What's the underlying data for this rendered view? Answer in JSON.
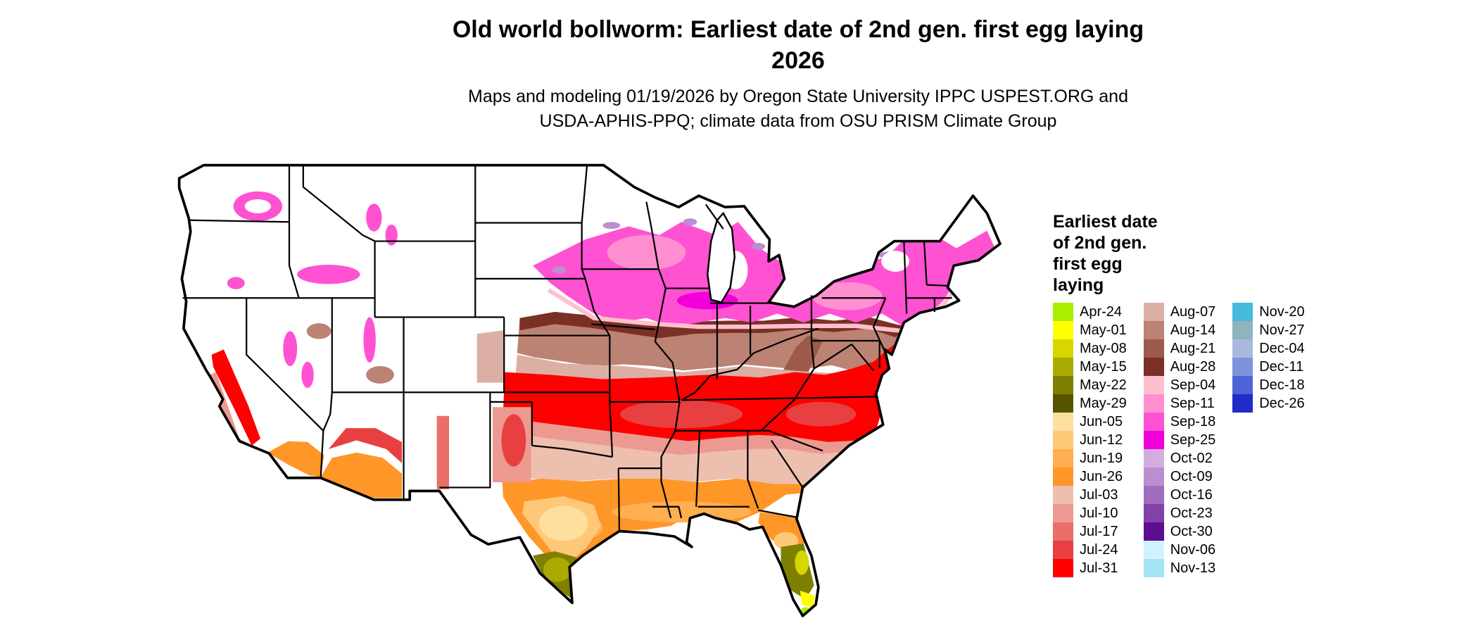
{
  "title": {
    "line1": "Old world bollworm: Earliest date of 2nd gen. first egg laying",
    "line2": "2026"
  },
  "subtitle": {
    "line1": "Maps and modeling 01/19/2026 by Oregon State University IPPC USPEST.ORG and",
    "line2": "USDA-APHIS-PPQ; climate data from OSU PRISM Climate Group"
  },
  "legend": {
    "title_lines": [
      "Earliest date",
      "of 2nd gen.",
      "first egg",
      "laying"
    ],
    "columns": [
      [
        {
          "label": "Apr-24",
          "color": "#aaee00"
        },
        {
          "label": "May-01",
          "color": "#ffff00"
        },
        {
          "label": "May-08",
          "color": "#d6d600"
        },
        {
          "label": "May-15",
          "color": "#aaaa00"
        },
        {
          "label": "May-22",
          "color": "#7f7f00"
        },
        {
          "label": "May-29",
          "color": "#555500"
        },
        {
          "label": "Jun-05",
          "color": "#ffdf9e"
        },
        {
          "label": "Jun-12",
          "color": "#ffc878"
        },
        {
          "label": "Jun-19",
          "color": "#ffaf50"
        },
        {
          "label": "Jun-26",
          "color": "#ff9628"
        },
        {
          "label": "Jul-03",
          "color": "#edbfae"
        },
        {
          "label": "Jul-10",
          "color": "#ec9a91"
        },
        {
          "label": "Jul-17",
          "color": "#ea6f69"
        },
        {
          "label": "Jul-24",
          "color": "#e84040"
        },
        {
          "label": "Jul-31",
          "color": "#ff0000"
        }
      ],
      [
        {
          "label": "Aug-07",
          "color": "#dcafa5"
        },
        {
          "label": "Aug-14",
          "color": "#bc8273"
        },
        {
          "label": "Aug-21",
          "color": "#9c5b4a"
        },
        {
          "label": "Aug-28",
          "color": "#7b3025"
        },
        {
          "label": "Sep-04",
          "color": "#ffc0ce"
        },
        {
          "label": "Sep-11",
          "color": "#ff8fd0"
        },
        {
          "label": "Sep-18",
          "color": "#ff52d2"
        },
        {
          "label": "Sep-25",
          "color": "#f000d8"
        },
        {
          "label": "Oct-02",
          "color": "#d2aede"
        },
        {
          "label": "Oct-09",
          "color": "#bc8ed0"
        },
        {
          "label": "Oct-16",
          "color": "#a06cbe"
        },
        {
          "label": "Oct-23",
          "color": "#8142a8"
        },
        {
          "label": "Oct-30",
          "color": "#5e0c90"
        },
        {
          "label": "Nov-06",
          "color": "#cff2ff"
        },
        {
          "label": "Nov-13",
          "color": "#a5e3f7"
        }
      ],
      [
        {
          "label": "Nov-20",
          "color": "#46b9dc"
        },
        {
          "label": "Nov-27",
          "color": "#8fb4bd"
        },
        {
          "label": "Dec-04",
          "color": "#aab8de"
        },
        {
          "label": "Dec-11",
          "color": "#7e93dd"
        },
        {
          "label": "Dec-18",
          "color": "#4f63d8"
        },
        {
          "label": "Dec-26",
          "color": "#1f2cc8"
        }
      ]
    ]
  }
}
